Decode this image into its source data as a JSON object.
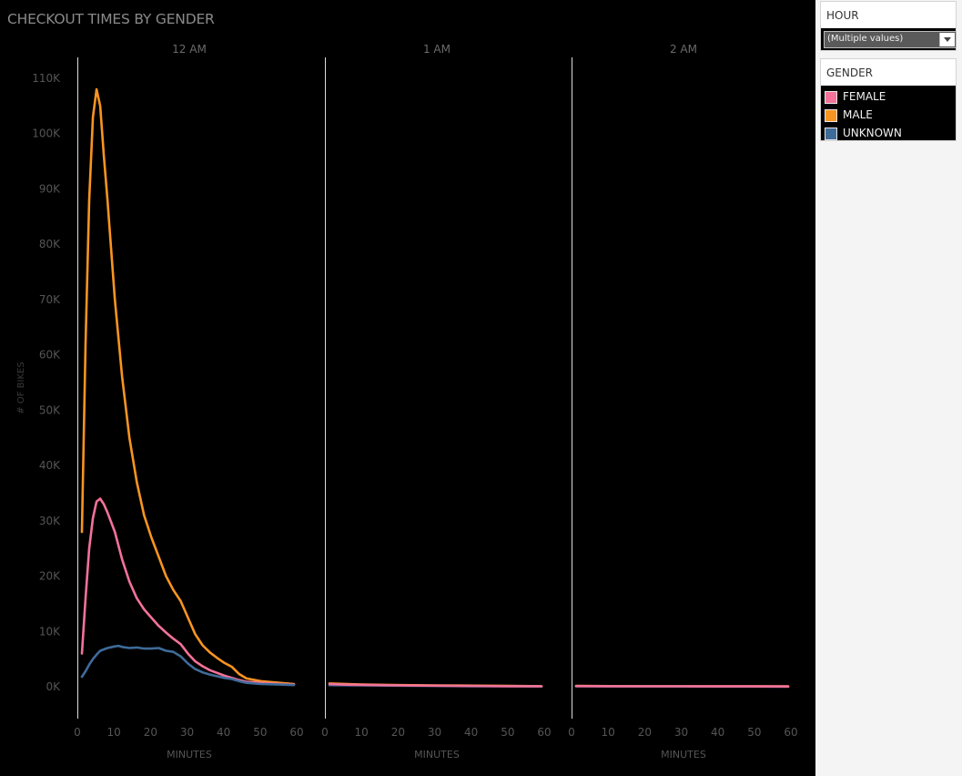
{
  "chart_title": "CHECKOUT TIMES BY GENDER",
  "filter": {
    "header": "HOUR",
    "selected_value": "(Multiple values)",
    "icon": "chevron-down-icon"
  },
  "legend": {
    "header": "GENDER",
    "items": [
      {
        "label": "FEMALE",
        "color": "#f4729a"
      },
      {
        "label": "MALE",
        "color": "#f89421"
      },
      {
        "label": "UNKNOWN",
        "color": "#3f6b99"
      }
    ]
  },
  "chart_data": {
    "type": "line",
    "title": "CHECKOUT TIMES BY GENDER",
    "ylabel": "# OF BIKES",
    "xlabel": "MINUTES",
    "ylim": [
      0,
      110000
    ],
    "yticks": [
      0,
      10000,
      20000,
      30000,
      40000,
      50000,
      60000,
      70000,
      80000,
      90000,
      100000,
      110000
    ],
    "ytick_labels": [
      "0K",
      "10K",
      "20K",
      "30K",
      "40K",
      "50K",
      "60K",
      "70K",
      "80K",
      "90K",
      "100K",
      "110K"
    ],
    "xlim": [
      0,
      60
    ],
    "xticks": [
      0,
      10,
      20,
      30,
      40,
      50,
      60
    ],
    "grid": false,
    "legend_position": "right",
    "panels": [
      {
        "label": "12 AM",
        "series": [
          {
            "name": "MALE",
            "color": "#f89421",
            "x": [
              1,
              2,
              3,
              4,
              5,
              6,
              7,
              8,
              10,
              12,
              14,
              16,
              18,
              20,
              22,
              24,
              26,
              28,
              30,
              32,
              34,
              36,
              38,
              40,
              42,
              44,
              46,
              50,
              55,
              59
            ],
            "y": [
              28000,
              62000,
              88000,
              103000,
              108000,
              105000,
              96000,
              88000,
              70000,
              56000,
              45000,
              37000,
              31000,
              27000,
              23500,
              20000,
              17500,
              15500,
              12500,
              9500,
              7500,
              6200,
              5200,
              4300,
              3600,
              2300,
              1500,
              1000,
              700,
              500
            ]
          },
          {
            "name": "FEMALE",
            "color": "#f4729a",
            "x": [
              1,
              2,
              3,
              4,
              5,
              6,
              7,
              8,
              10,
              12,
              14,
              16,
              18,
              20,
              22,
              24,
              26,
              28,
              30,
              32,
              34,
              36,
              38,
              40,
              42,
              44,
              46,
              50,
              55,
              59
            ],
            "y": [
              6000,
              16000,
              25000,
              30500,
              33500,
              34000,
              33000,
              31500,
              28000,
              23000,
              19000,
              16000,
              14000,
              12500,
              11000,
              9800,
              8700,
              7700,
              6000,
              4600,
              3700,
              3000,
              2500,
              2000,
              1600,
              1200,
              900,
              700,
              500,
              400
            ]
          },
          {
            "name": "UNKNOWN",
            "color": "#3f6b99",
            "x": [
              1,
              2,
              3,
              4,
              5,
              6,
              8,
              10,
              11,
              12,
              14,
              16,
              18,
              20,
              22,
              24,
              26,
              28,
              30,
              32,
              34,
              36,
              38,
              40,
              42,
              44,
              46,
              50,
              55,
              59
            ],
            "y": [
              1800,
              2800,
              4000,
              5000,
              5800,
              6500,
              7000,
              7300,
              7400,
              7200,
              7000,
              7100,
              6900,
              6900,
              7000,
              6500,
              6300,
              5500,
              4200,
              3200,
              2600,
              2200,
              1900,
              1600,
              1400,
              1000,
              700,
              500,
              400,
              300
            ]
          }
        ]
      },
      {
        "label": "1 AM",
        "series": [
          {
            "name": "MALE",
            "color": "#f89421",
            "x": [
              1,
              10,
              20,
              30,
              40,
              50,
              59
            ],
            "y": [
              600,
              400,
              300,
              250,
              200,
              150,
              100
            ]
          },
          {
            "name": "UNKNOWN",
            "color": "#3f6b99",
            "x": [
              1,
              10,
              20,
              30,
              40,
              50,
              59
            ],
            "y": [
              300,
              250,
              200,
              150,
              100,
              80,
              50
            ]
          },
          {
            "name": "FEMALE",
            "color": "#f4729a",
            "x": [
              1,
              5,
              10,
              20,
              30,
              40,
              50,
              59
            ],
            "y": [
              500,
              400,
              350,
              250,
              200,
              150,
              100,
              80
            ]
          }
        ]
      },
      {
        "label": "2 AM",
        "series": [
          {
            "name": "MALE",
            "color": "#f89421",
            "x": [
              1,
              10,
              20,
              30,
              40,
              50,
              59
            ],
            "y": [
              150,
              120,
              100,
              90,
              80,
              70,
              60
            ]
          },
          {
            "name": "UNKNOWN",
            "color": "#3f6b99",
            "x": [
              1,
              10,
              20,
              30,
              40,
              50,
              59
            ],
            "y": [
              80,
              70,
              60,
              50,
              40,
              30,
              20
            ]
          },
          {
            "name": "FEMALE",
            "color": "#f4729a",
            "x": [
              1,
              10,
              20,
              30,
              40,
              50,
              59
            ],
            "y": [
              120,
              100,
              90,
              80,
              70,
              60,
              50
            ]
          }
        ]
      }
    ]
  }
}
